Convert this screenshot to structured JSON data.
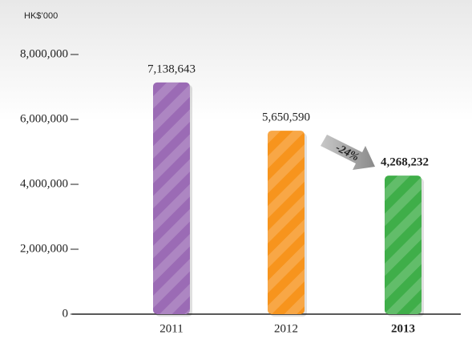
{
  "chart_data": {
    "type": "bar",
    "unit_label": "HK$’000",
    "categories": [
      "2011",
      "2012",
      "2013"
    ],
    "values": [
      7138643,
      5650590,
      4268232
    ],
    "value_labels": [
      "7,138,643",
      "5,650,590",
      "4,268,232"
    ],
    "colors": [
      "#9b6bb5",
      "#f7941d",
      "#3fae49"
    ],
    "ylim": [
      0,
      8000000
    ],
    "yticks": [
      0,
      {
        "value": 2000000,
        "label": "2,000,000"
      },
      {
        "value": 4000000,
        "label": "4,000,000"
      },
      {
        "value": 6000000,
        "label": "6,000,000"
      },
      {
        "value": 8000000,
        "label": "8,000,000"
      }
    ],
    "annotation": "-24%"
  }
}
